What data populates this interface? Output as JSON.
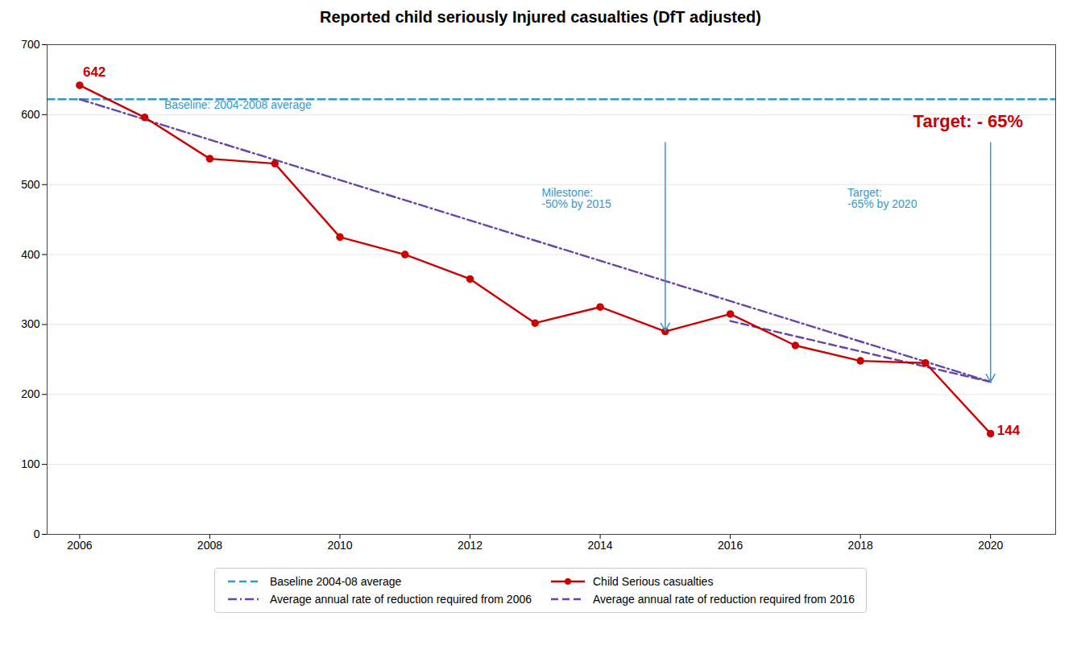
{
  "chart_data": {
    "type": "line",
    "title": "Reported child seriously Injured casualties (DfT adjusted)",
    "x": [
      2006,
      2007,
      2008,
      2009,
      2010,
      2011,
      2012,
      2013,
      2014,
      2015,
      2016,
      2017,
      2018,
      2019,
      2020
    ],
    "series": [
      {
        "name": "Baseline 2004-08 average",
        "color": "#3399CC",
        "line_style": "dashed",
        "x": [
          2005.5,
          2021.0
        ],
        "values": [
          622,
          622
        ]
      },
      {
        "name": "Average annual rate of reduction required from 2006",
        "color": "#6644AA",
        "line_style": "dashdot",
        "x": [
          2006,
          2020
        ],
        "values": [
          622,
          218
        ]
      },
      {
        "name": "Child Serious casualties",
        "color": "#CC0000",
        "line_style": "solid",
        "marker": "circle",
        "values": [
          642,
          596,
          537,
          530,
          425,
          400,
          365,
          302,
          325,
          290,
          315,
          270,
          248,
          245,
          144
        ]
      },
      {
        "name": "Average annual rate of reduction required from 2016",
        "color": "#6644AA",
        "line_style": "dashed",
        "x": [
          2016,
          2020
        ],
        "values": [
          305,
          218
        ]
      }
    ],
    "annotations": [
      {
        "text": "Milestone:\n-50% by 2015",
        "x": 2013.1,
        "y": 480,
        "color": "#3399CC",
        "arrow": {
          "x": 2015,
          "y_from": 560,
          "y_to": 291
        }
      },
      {
        "text": "Target:\n-65% by 2020",
        "x": 2017.8,
        "y": 480,
        "color": "#3399CC",
        "arrow": {
          "x": 2020,
          "y_from": 560,
          "y_to": 218
        }
      },
      {
        "text": "Target: - 65%",
        "x": 2020.5,
        "y": 590,
        "color": "#CC0000"
      },
      {
        "text": "Baseline: 2004-2008 average",
        "x": 2007.3,
        "y": 608,
        "color": "#3399CC"
      },
      {
        "text": "642",
        "x": 2006.05,
        "y": 655,
        "color": "#CC0000"
      },
      {
        "text": "144",
        "x": 2020.1,
        "y": 148,
        "color": "#CC0000"
      }
    ],
    "xlim": [
      2005.5,
      2021.0
    ],
    "xticks": [
      2006,
      2008,
      2010,
      2012,
      2014,
      2016,
      2018,
      2020
    ],
    "ylim": [
      0,
      700
    ],
    "yticks": [
      0,
      100,
      200,
      300,
      400,
      500,
      600,
      700
    ],
    "grid": "y",
    "legend": "bottom"
  }
}
